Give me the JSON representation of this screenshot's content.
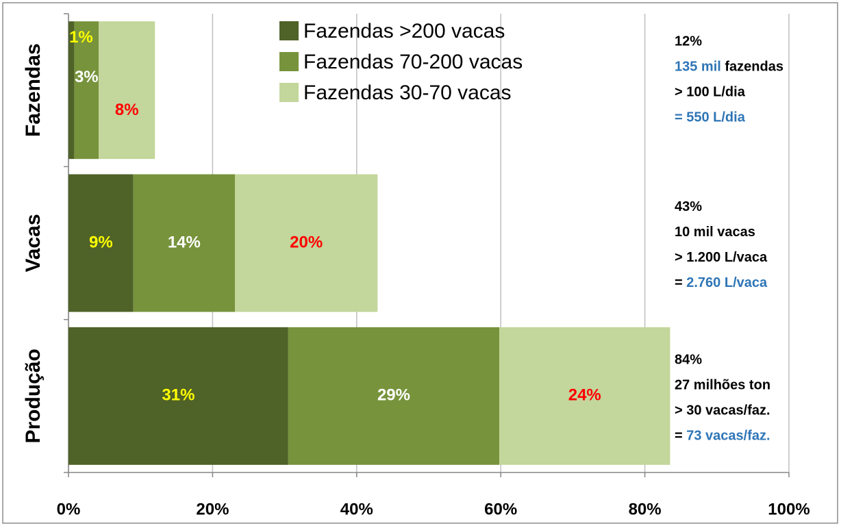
{
  "chart_data": {
    "type": "stacked_barh",
    "categories": [
      "Fazendas",
      "Vacas",
      "Produção"
    ],
    "series": [
      {
        "name": "Fazendas >200 vacas",
        "color": "#4f6228",
        "label_color": "#ffff00",
        "values": [
          0.8,
          9.0,
          30.5
        ],
        "value_labels": [
          "1%",
          "9%",
          "31%"
        ]
      },
      {
        "name": "Fazendas 70-200 vacas",
        "color": "#77933c",
        "label_color": "#ffffff",
        "values": [
          3.4,
          14.1,
          29.3
        ],
        "value_labels": [
          "3%",
          "14%",
          "29%"
        ]
      },
      {
        "name": "Fazendas 30-70 vacas",
        "color": "#c3d69b",
        "label_color": "#ff0000",
        "values": [
          7.8,
          19.8,
          23.7
        ],
        "value_labels": [
          "8%",
          "20%",
          "24%"
        ]
      }
    ],
    "xlim": [
      0,
      100
    ],
    "xticks": [
      {
        "value": 0,
        "label": "0%"
      },
      {
        "value": 20,
        "label": "20%"
      },
      {
        "value": 40,
        "label": "40%"
      },
      {
        "value": 60,
        "label": "60%"
      },
      {
        "value": 80,
        "label": "80%"
      },
      {
        "value": 100,
        "label": "100%"
      }
    ],
    "grid": true,
    "legend": "top",
    "annotations": [
      [
        [
          {
            "text": "12%",
            "color": "#000000"
          }
        ],
        [
          {
            "text": "135 mil",
            "color": "#2e75b6"
          },
          {
            "text": " fazendas",
            "color": "#000000"
          }
        ],
        [
          {
            "text": "> 100 L/dia",
            "color": "#000000"
          }
        ],
        [
          {
            "text": "= 550 L/dia",
            "color": "#2e75b6"
          }
        ]
      ],
      [
        [
          {
            "text": "43%",
            "color": "#000000"
          }
        ],
        [
          {
            "text": "10 mil vacas",
            "color": "#000000"
          }
        ],
        [
          {
            "text": "> 1.200 L/vaca",
            "color": "#000000"
          }
        ],
        [
          {
            "text": "=",
            "color": "#000000"
          },
          {
            "text": "  2.760 L/vaca",
            "color": "#2e75b6"
          }
        ]
      ],
      [
        [
          {
            "text": "84%",
            "color": "#000000"
          }
        ],
        [
          {
            "text": "27 milhões ton",
            "color": "#000000"
          }
        ],
        [
          {
            "text": "> 30 vacas/faz.",
            "color": "#000000"
          }
        ],
        [
          {
            "text": "=",
            "color": "#000000"
          },
          {
            "text": " 73 vacas/faz.",
            "color": "#2e75b6"
          }
        ]
      ]
    ]
  }
}
